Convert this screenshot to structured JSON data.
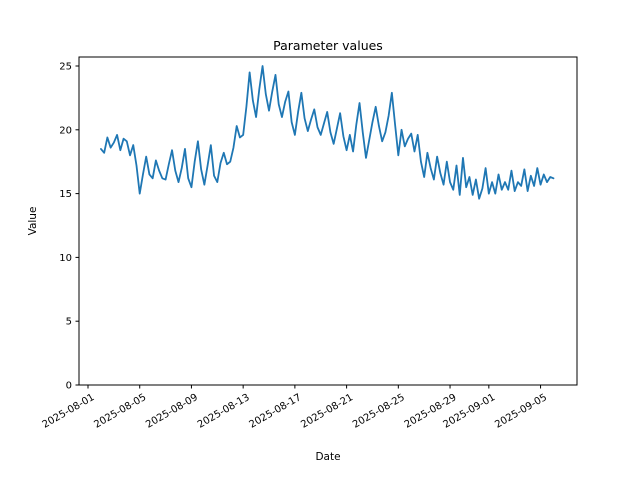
{
  "chart_data": {
    "type": "line",
    "title": "Parameter values",
    "xlabel": "Date",
    "ylabel": "Value",
    "grid": false,
    "legend": null,
    "line_color": "#1f77b4",
    "axis_color": "#000000",
    "background_color": "#ffffff",
    "ylim": [
      0,
      25.7
    ],
    "y_ticks": [
      0,
      5,
      10,
      15,
      20,
      25
    ],
    "x_tick_labels": [
      "2025-08-01",
      "2025-08-05",
      "2025-08-09",
      "2025-08-13",
      "2025-08-17",
      "2025-08-21",
      "2025-08-25",
      "2025-08-29",
      "2025-09-01",
      "2025-09-05"
    ],
    "x_tick_rotation_deg": 30,
    "series": [
      {
        "name": "Parameter values",
        "x_start": "2025-08-02",
        "sample_interval_hours": 6,
        "x_end": "2025-09-06",
        "values": [
          18.5,
          18.2,
          19.4,
          18.6,
          19.0,
          19.6,
          18.4,
          19.3,
          19.1,
          18.0,
          18.8,
          17.2,
          15.0,
          16.5,
          17.9,
          16.5,
          16.2,
          17.6,
          16.8,
          16.2,
          16.1,
          17.3,
          18.4,
          16.8,
          15.9,
          17.0,
          18.5,
          16.2,
          15.5,
          17.5,
          19.1,
          16.9,
          15.7,
          17.2,
          18.8,
          16.4,
          15.9,
          17.4,
          18.2,
          17.3,
          17.5,
          18.6,
          20.3,
          19.4,
          19.6,
          21.8,
          24.5,
          22.3,
          21.0,
          23.2,
          25.0,
          22.8,
          21.5,
          23.0,
          24.3,
          22.0,
          21.0,
          22.2,
          23.0,
          20.6,
          19.6,
          21.4,
          22.9,
          20.9,
          19.9,
          20.8,
          21.6,
          20.2,
          19.6,
          20.5,
          21.4,
          19.8,
          18.9,
          20.1,
          21.3,
          19.5,
          18.4,
          19.6,
          18.3,
          20.4,
          22.1,
          19.8,
          17.8,
          19.2,
          20.6,
          21.8,
          20.3,
          19.1,
          19.8,
          21.1,
          22.9,
          20.4,
          18.0,
          20.0,
          18.7,
          19.3,
          19.7,
          18.3,
          19.6,
          17.5,
          16.3,
          18.2,
          17.0,
          16.1,
          17.9,
          16.6,
          15.7,
          17.5,
          15.9,
          15.3,
          17.2,
          14.9,
          17.8,
          15.5,
          16.3,
          14.9,
          16.1,
          14.6,
          15.4,
          17.0,
          15.0,
          15.9,
          15.0,
          16.5,
          15.3,
          15.9,
          15.3,
          16.8,
          15.2,
          15.9,
          15.6,
          16.9,
          15.2,
          16.4,
          15.6,
          17.0,
          15.7,
          16.5,
          15.9,
          16.3,
          16.2
        ]
      }
    ]
  }
}
